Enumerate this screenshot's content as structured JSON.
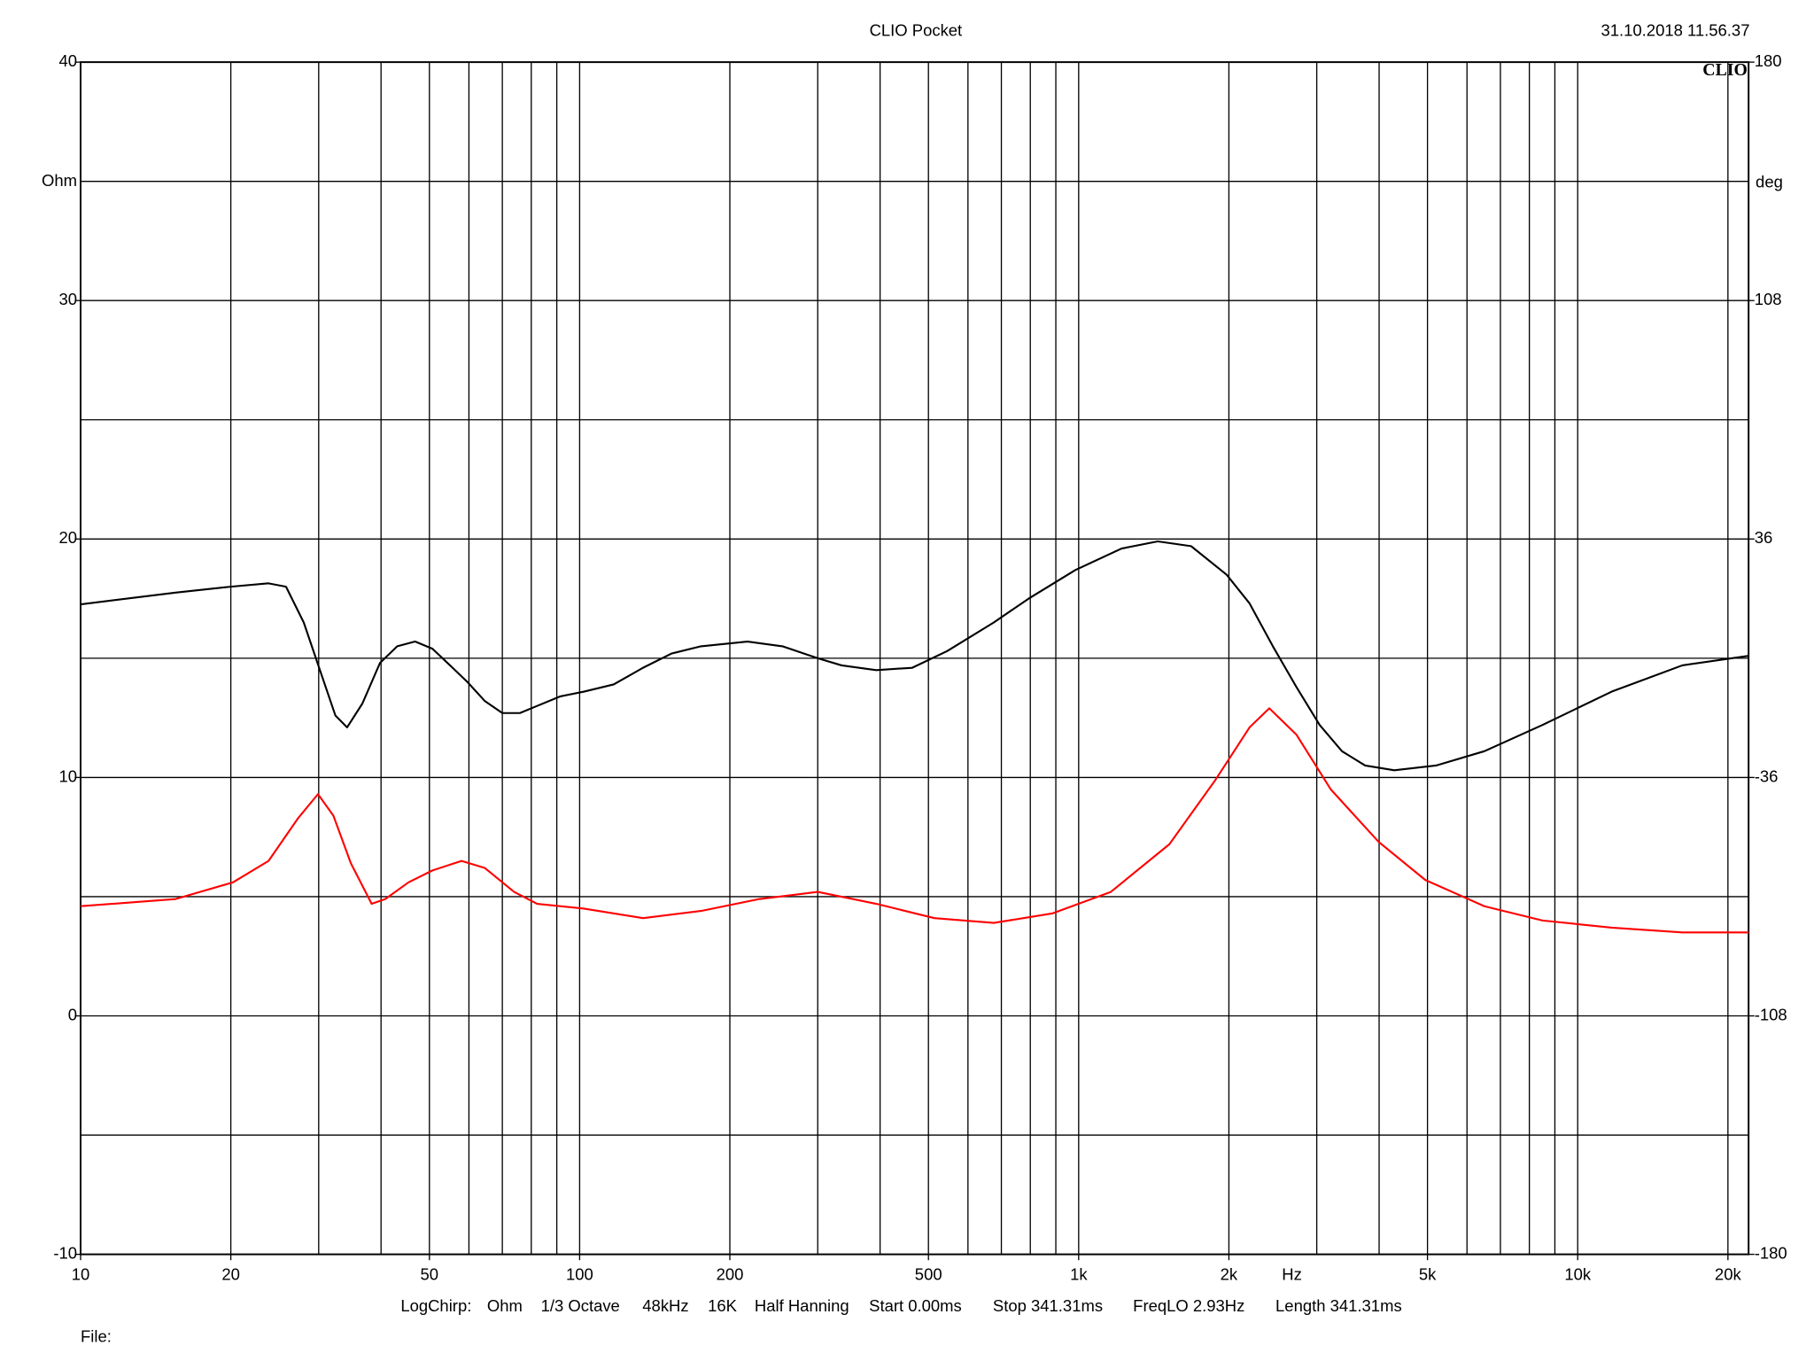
{
  "chart_data": {
    "type": "line",
    "title": "CLIO Pocket",
    "timestamp": "31.10.2018 11.56.37",
    "logo": "CLIO",
    "y_label": "Ohm",
    "y2_label": "deg",
    "x_label": "Hz",
    "footer": [
      "LogChirp:",
      "Ohm",
      "1/3 Octave",
      "48kHz",
      "16K",
      "Half Hanning",
      "Start 0.00ms",
      "Stop 341.31ms",
      "FreqLO 2.93Hz",
      "Length 341.31ms"
    ],
    "file_label": "File:",
    "xscale": "log",
    "xlim": [
      10,
      22000
    ],
    "xticks": [
      10,
      20,
      50,
      100,
      200,
      500,
      {
        "value": 1000,
        "label": "1k"
      },
      {
        "value": 2000,
        "label": "2k"
      },
      {
        "value": 5000,
        "label": "5k"
      },
      {
        "value": 10000,
        "label": "10k"
      },
      {
        "value": 20000,
        "label": "20k"
      }
    ],
    "xgrid": [
      20,
      30,
      40,
      50,
      60,
      70,
      80,
      90,
      100,
      200,
      300,
      400,
      500,
      600,
      700,
      800,
      900,
      1000,
      2000,
      3000,
      4000,
      5000,
      6000,
      7000,
      8000,
      9000,
      10000,
      20000
    ],
    "ylim": [
      -10,
      40
    ],
    "yticks": [
      -10,
      0,
      10,
      20,
      30,
      40
    ],
    "ygrid": [
      -5,
      0,
      5,
      10,
      15,
      20,
      25,
      30,
      35
    ],
    "y2lim": [
      -180,
      180
    ],
    "y2ticks": [
      -180,
      -108,
      -36,
      36,
      108,
      180
    ],
    "grid": true,
    "series": [
      {
        "color": "#000000",
        "x": [
          10,
          15.5,
          20,
          23.8,
          25.8,
          28,
          30.4,
          32.4,
          34.2,
          36.7,
          39.8,
          43.1,
          46.8,
          50.7,
          55,
          59.6,
          64.6,
          70,
          75.9,
          82.2,
          91.5,
          102,
          117,
          134,
          153,
          175,
          217,
          255,
          300,
          335,
          393,
          464,
          545,
          676,
          794,
          985,
          1219,
          1440,
          1680,
          1980,
          2200,
          2450,
          2730,
          3040,
          3370,
          3750,
          4290,
          5200,
          6500,
          8500,
          11700,
          16200,
          22000
        ],
        "values": [
          17.26,
          17.75,
          18.0,
          18.14,
          18.0,
          16.5,
          14.3,
          12.6,
          12.1,
          13.1,
          14.8,
          15.5,
          15.7,
          15.4,
          14.7,
          14.0,
          13.2,
          12.7,
          12.7,
          13.0,
          13.4,
          13.6,
          13.9,
          14.6,
          15.2,
          15.5,
          15.7,
          15.5,
          15.0,
          14.7,
          14.5,
          14.6,
          15.3,
          16.5,
          17.5,
          18.7,
          19.6,
          19.9,
          19.7,
          18.5,
          17.3,
          15.5,
          13.8,
          12.2,
          11.1,
          10.5,
          10.3,
          10.5,
          11.1,
          12.2,
          13.6,
          14.7,
          15.1
        ]
      },
      {
        "color": "#ff0000",
        "x": [
          10,
          15.5,
          20.2,
          23.8,
          27.3,
          29.9,
          32.1,
          34.8,
          38.3,
          40.8,
          45.4,
          50.7,
          58,
          64.6,
          73.9,
          82.2,
          102,
          134,
          175,
          229,
          300,
          393,
          514,
          676,
          887,
          1160,
          1520,
          1880,
          2200,
          2410,
          2730,
          3200,
          3990,
          4950,
          6500,
          8500,
          11700,
          16200,
          22000
        ],
        "values": [
          4.6,
          4.9,
          5.6,
          6.5,
          8.3,
          9.3,
          8.4,
          6.4,
          4.7,
          4.9,
          5.6,
          6.1,
          6.5,
          6.2,
          5.2,
          4.7,
          4.5,
          4.1,
          4.4,
          4.9,
          5.2,
          4.7,
          4.1,
          3.9,
          4.3,
          5.2,
          7.2,
          9.9,
          12.1,
          12.9,
          11.8,
          9.5,
          7.3,
          5.7,
          4.6,
          4.0,
          3.7,
          3.5,
          3.5
        ]
      }
    ]
  }
}
